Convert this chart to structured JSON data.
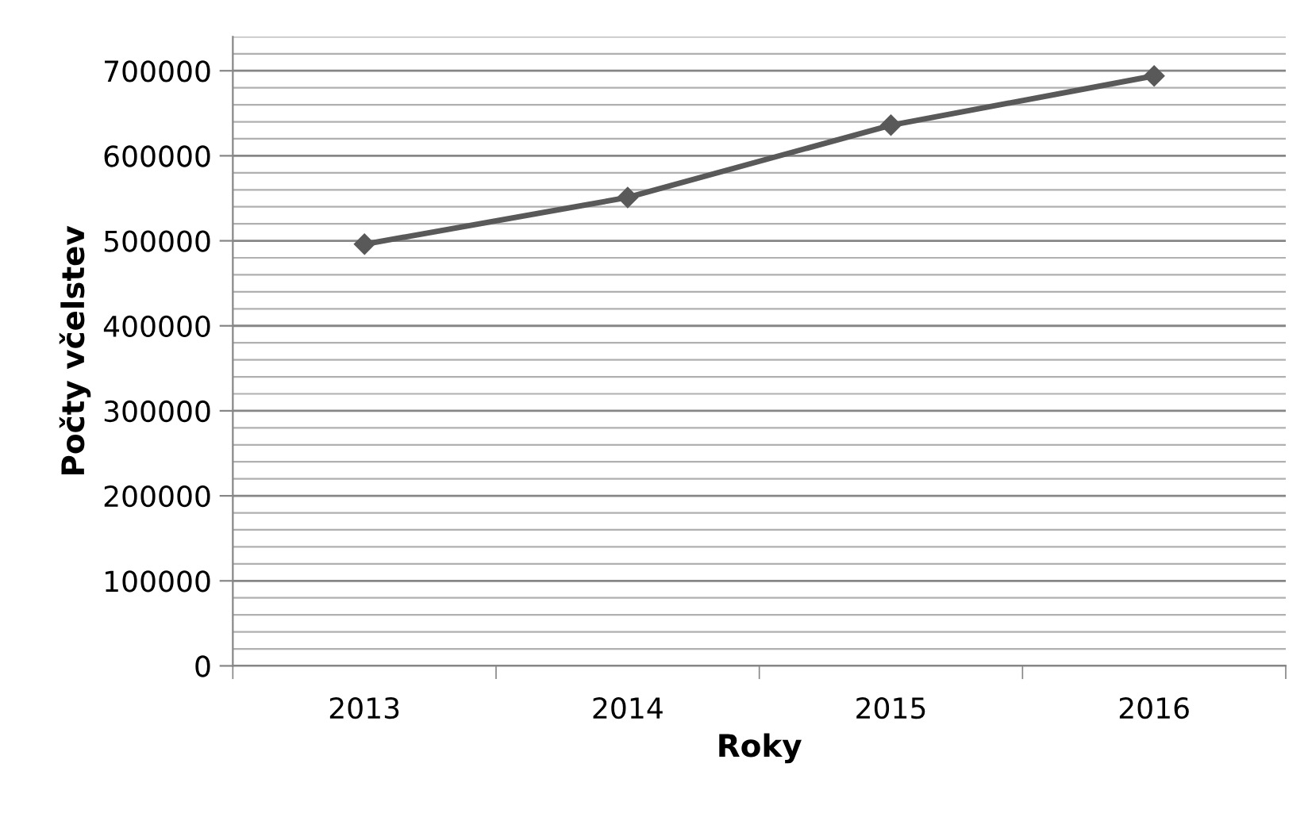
{
  "chart_data": {
    "type": "line",
    "xlabel": "Roky",
    "ylabel": "Počty včelstev",
    "categories": [
      "2013",
      "2014",
      "2015",
      "2016"
    ],
    "series": [
      {
        "color": "#595959",
        "values": [
          496000,
          551000,
          636000,
          694000
        ]
      }
    ],
    "ylim": [
      0,
      740000
    ],
    "yticks": [
      0,
      100000,
      200000,
      300000,
      400000,
      500000,
      600000,
      700000
    ],
    "grid": "y",
    "marker": "diamond",
    "line_style": "solid"
  }
}
